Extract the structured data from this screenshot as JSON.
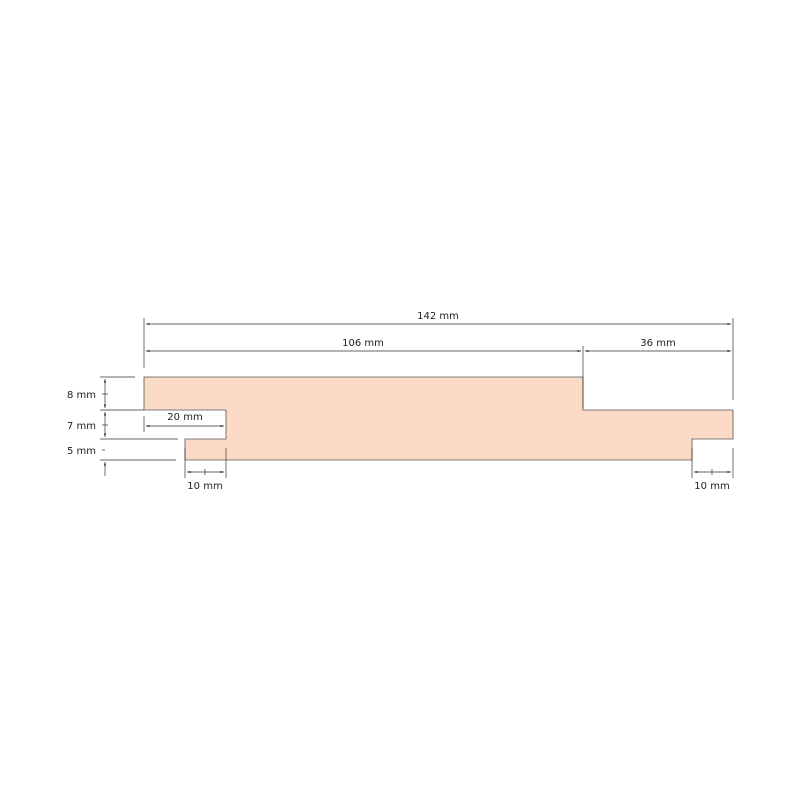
{
  "profile": {
    "fill_color": "#fbdac6",
    "stroke_color": "#555555"
  },
  "dimensions": {
    "total_width": "142 mm",
    "main_width": "106 mm",
    "tongue_width": "36 mm",
    "groove_depth": "20 mm",
    "left_bottom_offset": "10 mm",
    "right_bottom_offset": "10 mm",
    "top_thickness": "8 mm",
    "middle_thickness": "7 mm",
    "bottom_thickness": "5 mm"
  }
}
